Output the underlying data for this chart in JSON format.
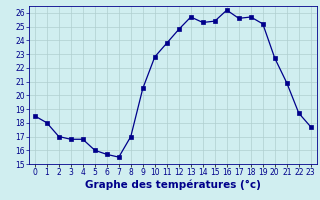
{
  "hours": [
    0,
    1,
    2,
    3,
    4,
    5,
    6,
    7,
    8,
    9,
    10,
    11,
    12,
    13,
    14,
    15,
    16,
    17,
    18,
    19,
    20,
    21,
    22,
    23
  ],
  "temps": [
    18.5,
    18.0,
    17.0,
    16.8,
    16.8,
    16.0,
    15.7,
    15.5,
    17.0,
    20.5,
    22.8,
    23.8,
    24.8,
    25.7,
    25.3,
    25.4,
    26.2,
    25.6,
    25.7,
    25.2,
    22.7,
    20.9,
    18.7,
    17.7
  ],
  "line_color": "#00008B",
  "marker": "s",
  "marker_size": 2.5,
  "bg_color": "#d0eef0",
  "grid_color": "#b0cfd0",
  "xlabel": "Graphe des températures (°c)",
  "xlabel_color": "#00008B",
  "ylim": [
    15,
    26.5
  ],
  "yticks": [
    15,
    16,
    17,
    18,
    19,
    20,
    21,
    22,
    23,
    24,
    25,
    26
  ],
  "xtick_labels": [
    "0",
    "1",
    "2",
    "3",
    "4",
    "5",
    "6",
    "7",
    "8",
    "9",
    "10",
    "11",
    "12",
    "13",
    "14",
    "15",
    "16",
    "17",
    "18",
    "19",
    "20",
    "21",
    "22",
    "23"
  ],
  "tick_color": "#00008B",
  "tick_fontsize": 5.5,
  "xlabel_fontsize": 7.5
}
